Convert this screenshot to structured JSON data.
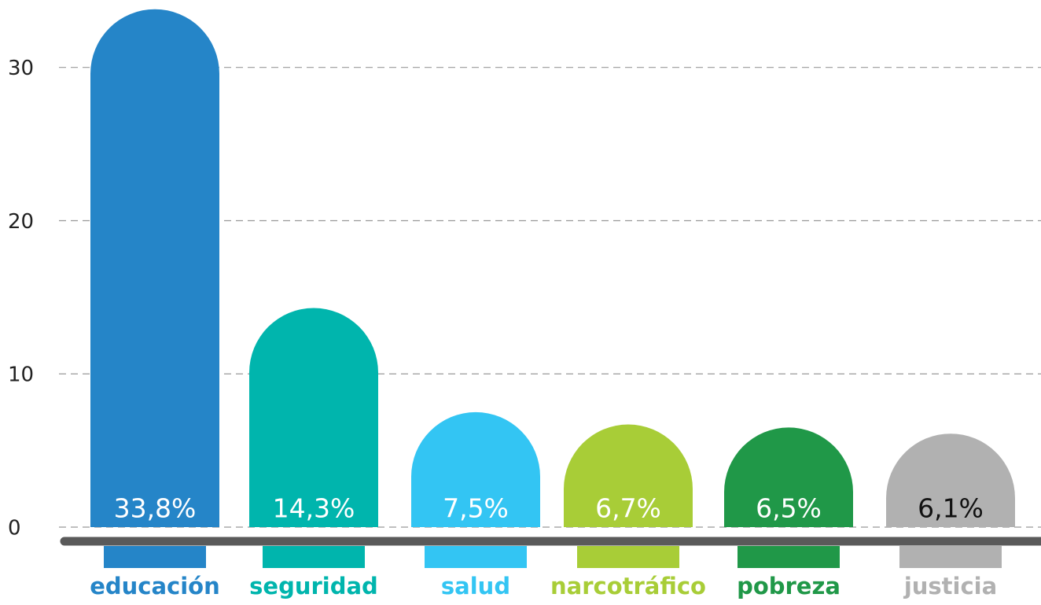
{
  "chart_data": {
    "type": "bar",
    "categories": [
      "educación",
      "seguridad",
      "salud",
      "narcotráfico",
      "pobreza",
      "justicia"
    ],
    "values": [
      33.8,
      14.3,
      7.5,
      6.7,
      6.5,
      6.1
    ],
    "value_labels": [
      "33,8%",
      "14,3%",
      "7,5%",
      "6,7%",
      "6,5%",
      "6,1%"
    ],
    "colors": [
      "#2585c8",
      "#00b5ad",
      "#33c5f3",
      "#a8cd37",
      "#209848",
      "#b1b1b1"
    ],
    "value_label_colors": [
      "#ffffff",
      "#ffffff",
      "#ffffff",
      "#ffffff",
      "#ffffff",
      "#111111"
    ],
    "ylim": [
      0,
      34.4
    ],
    "yticks": [
      0,
      10,
      20,
      30
    ],
    "grid": true
  }
}
